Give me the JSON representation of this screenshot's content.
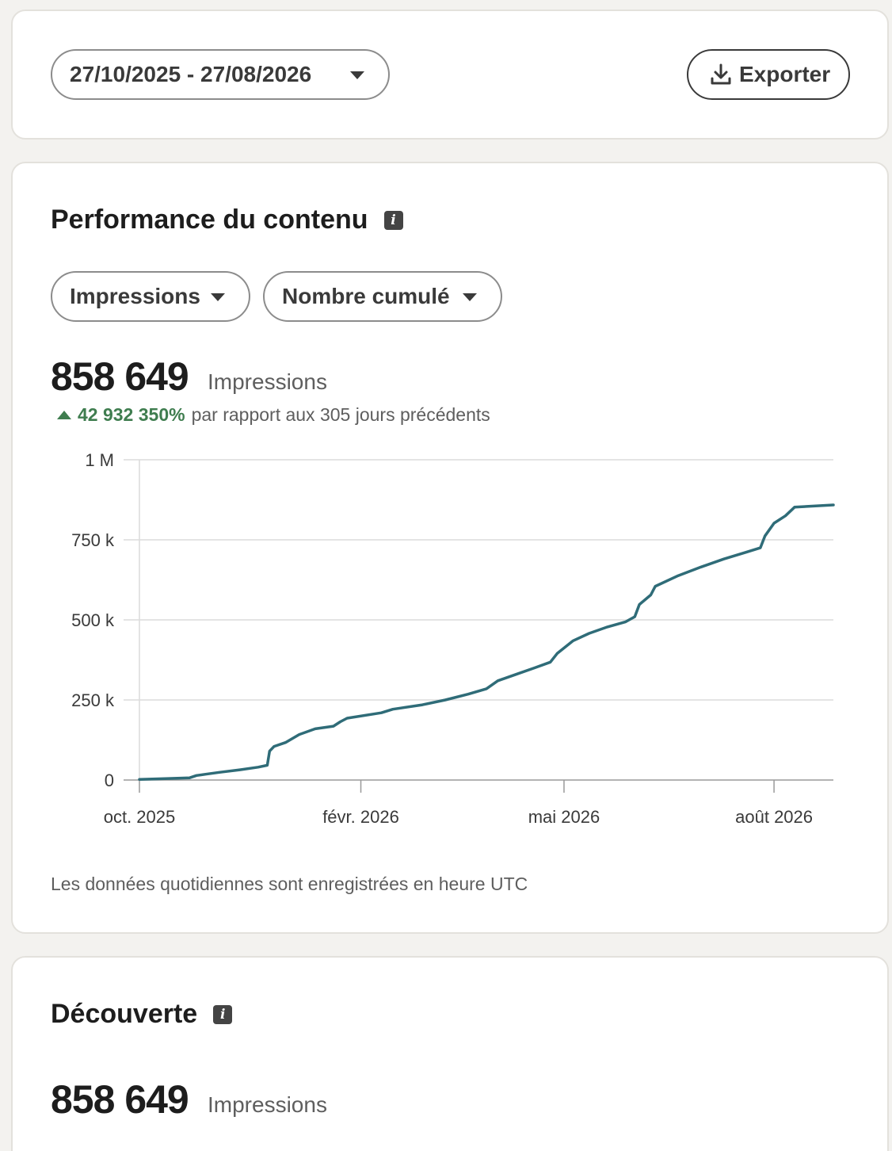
{
  "toolbar": {
    "date_range": "27/10/2025 - 27/08/2026",
    "export_label": "Exporter"
  },
  "performance": {
    "title": "Performance du contenu",
    "metric_select": "Impressions",
    "mode_select": "Nombre cumulé",
    "total": "858 649",
    "total_unit": "Impressions",
    "change_value": "42 932 350%",
    "change_text": "par rapport aux 305 jours précédents",
    "footnote": "Les données quotidiennes sont enregistrées en heure UTC"
  },
  "discovery": {
    "title": "Découverte",
    "total": "858 649",
    "total_unit": "Impressions"
  },
  "colors": {
    "line": "#2f6c78",
    "positive": "#3f7d4f"
  },
  "chart_data": {
    "type": "line",
    "title": "",
    "xlabel": "",
    "ylabel": "",
    "x_tick_labels": [
      "oct. 2025",
      "févr. 2026",
      "mai 2026",
      "août 2026"
    ],
    "x_tick_dates": [
      "2025-10-27",
      "2026-02-01",
      "2026-05-01",
      "2026-08-01"
    ],
    "y_tick_labels": [
      "0",
      "250 k",
      "500 k",
      "750 k",
      "1 M"
    ],
    "y_tick_values": [
      0,
      250000,
      500000,
      750000,
      1000000
    ],
    "ylim": [
      0,
      1000000
    ],
    "xlim": [
      "2025-10-27",
      "2026-08-27"
    ],
    "grid": true,
    "legend": "none",
    "series": [
      {
        "x": [
          "2025-10-27",
          "2025-11-10",
          "2025-11-18",
          "2025-11-21",
          "2025-11-25",
          "2025-12-01",
          "2025-12-10",
          "2025-12-18",
          "2025-12-22",
          "2025-12-23",
          "2025-12-25",
          "2025-12-30",
          "2026-01-05",
          "2026-01-12",
          "2026-01-20",
          "2026-01-23",
          "2026-01-26",
          "2026-02-10",
          "2026-02-15",
          "2026-02-28",
          "2026-03-10",
          "2026-03-20",
          "2026-03-28",
          "2026-04-02",
          "2026-04-10",
          "2026-04-18",
          "2026-04-25",
          "2026-04-28",
          "2026-05-05",
          "2026-05-12",
          "2026-05-20",
          "2026-05-28",
          "2026-06-01",
          "2026-06-03",
          "2026-06-08",
          "2026-06-10",
          "2026-06-20",
          "2026-06-30",
          "2026-07-10",
          "2026-07-20",
          "2026-07-26",
          "2026-07-28",
          "2026-08-01",
          "2026-08-06",
          "2026-08-10",
          "2026-08-27"
        ],
        "y": [
          2000,
          5000,
          7000,
          14000,
          18000,
          24000,
          32000,
          40000,
          46000,
          90000,
          105000,
          117000,
          142000,
          160000,
          168000,
          182000,
          193000,
          210000,
          221000,
          235000,
          250000,
          268000,
          285000,
          310000,
          330000,
          350000,
          368000,
          395000,
          435000,
          458000,
          478000,
          494000,
          510000,
          548000,
          578000,
          605000,
          638000,
          665000,
          690000,
          712000,
          725000,
          762000,
          802000,
          825000,
          852000,
          859000
        ]
      }
    ]
  }
}
